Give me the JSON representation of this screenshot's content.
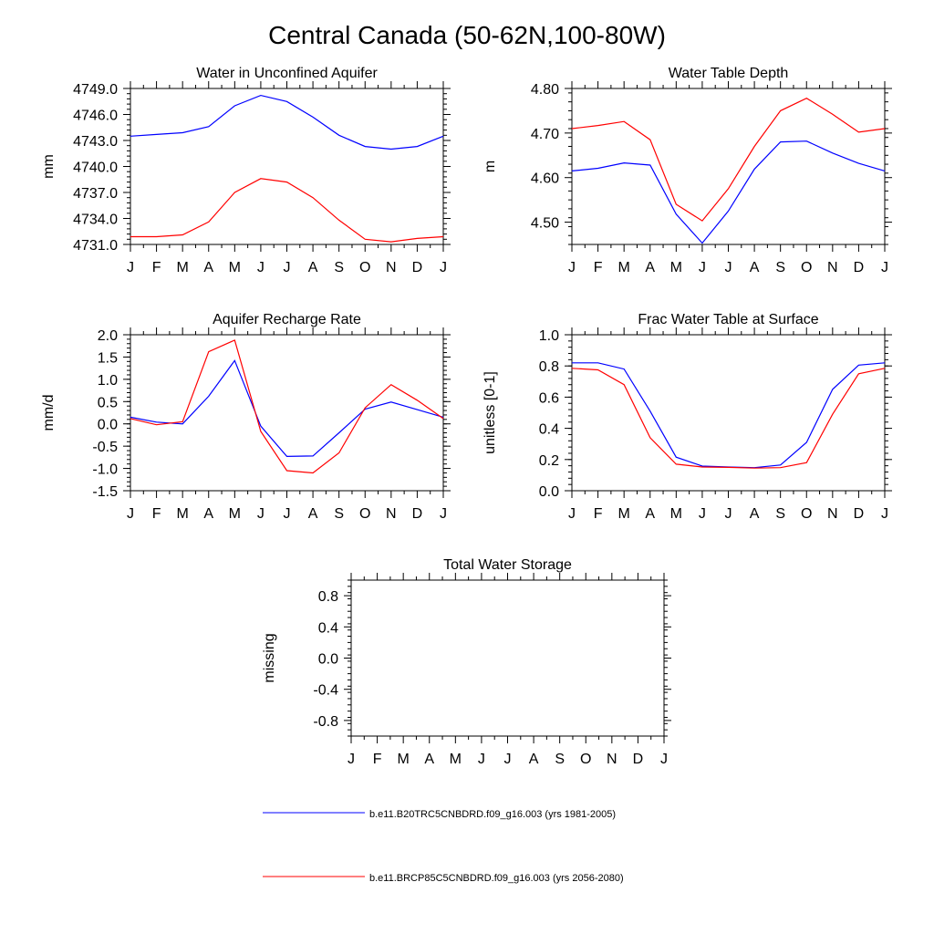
{
  "figure_title": "Central Canada (50-62N,100-80W)",
  "colors": {
    "series_1": "#0000ff",
    "series_2": "#ff0000",
    "axis": "#000000"
  },
  "legend": [
    {
      "label": "b.e11.B20TRC5CNBDRD.f09_g16.003 (yrs 1981-2005)",
      "color": "#0000ff"
    },
    {
      "label": "b.e11.BRCP85C5CNBDRD.f09_g16.003 (yrs 2056-2080)",
      "color": "#ff0000"
    }
  ],
  "chart_data": [
    {
      "type": "line",
      "title": "Water in Unconfined Aquifer",
      "ylabel": "mm",
      "categories": [
        "J",
        "F",
        "M",
        "A",
        "M",
        "J",
        "J",
        "A",
        "S",
        "O",
        "N",
        "D",
        "J"
      ],
      "ylim": [
        4731.0,
        4749.0
      ],
      "yticks": [
        4731.0,
        4734.0,
        4737.0,
        4740.0,
        4743.0,
        4746.0,
        4749.0
      ],
      "ytick_labels": [
        "4731.0",
        "4734.0",
        "4737.0",
        "4740.0",
        "4743.0",
        "4746.0",
        "4749.0"
      ],
      "series": [
        {
          "name": "b.e11.B20TRC5CNBDRD.f09_g16.003 (yrs 1981-2005)",
          "color": "#0000ff",
          "values": [
            4743.5,
            4743.7,
            4743.9,
            4744.6,
            4747.0,
            4748.2,
            4747.5,
            4745.7,
            4743.6,
            4742.3,
            4742.0,
            4742.3,
            4743.5
          ]
        },
        {
          "name": "b.e11.BRCP85C5CNBDRD.f09_g16.003 (yrs 2056-2080)",
          "color": "#ff0000",
          "values": [
            4731.9,
            4731.9,
            4732.1,
            4733.6,
            4737.0,
            4738.6,
            4738.2,
            4736.4,
            4733.8,
            4731.6,
            4731.3,
            4731.7,
            4731.9
          ]
        }
      ]
    },
    {
      "type": "line",
      "title": "Water Table Depth",
      "ylabel": "m",
      "categories": [
        "J",
        "F",
        "M",
        "A",
        "M",
        "J",
        "J",
        "A",
        "S",
        "O",
        "N",
        "D",
        "J"
      ],
      "ylim": [
        4.45,
        4.8
      ],
      "yticks": [
        4.5,
        4.6,
        4.7,
        4.8
      ],
      "ytick_labels": [
        "4.50",
        "4.60",
        "4.70",
        "4.80"
      ],
      "series": [
        {
          "name": "b.e11.B20TRC5CNBDRD.f09_g16.003 (yrs 1981-2005)",
          "color": "#0000ff",
          "values": [
            4.615,
            4.621,
            4.633,
            4.628,
            4.518,
            4.453,
            4.525,
            4.619,
            4.68,
            4.682,
            4.655,
            4.632,
            4.615
          ]
        },
        {
          "name": "b.e11.BRCP85C5CNBDRD.f09_g16.003 (yrs 2056-2080)",
          "color": "#ff0000",
          "values": [
            4.71,
            4.717,
            4.726,
            4.685,
            4.54,
            4.503,
            4.575,
            4.67,
            4.75,
            4.778,
            4.742,
            4.702,
            4.71
          ]
        }
      ]
    },
    {
      "type": "line",
      "title": "Aquifer Recharge Rate",
      "ylabel": "mm/d",
      "categories": [
        "J",
        "F",
        "M",
        "A",
        "M",
        "J",
        "J",
        "A",
        "S",
        "O",
        "N",
        "D",
        "J"
      ],
      "ylim": [
        -1.5,
        2.0
      ],
      "yticks": [
        -1.5,
        -1.0,
        -0.5,
        0.0,
        0.5,
        1.0,
        1.5,
        2.0
      ],
      "ytick_labels": [
        "-1.5",
        "-1.0",
        "-0.5",
        "0.0",
        "0.5",
        "1.0",
        "1.5",
        "2.0"
      ],
      "series": [
        {
          "name": "b.e11.B20TRC5CNBDRD.f09_g16.003 (yrs 1981-2005)",
          "color": "#0000ff",
          "values": [
            0.15,
            0.04,
            0.0,
            0.62,
            1.42,
            -0.05,
            -0.73,
            -0.72,
            -0.2,
            0.33,
            0.49,
            0.32,
            0.15
          ]
        },
        {
          "name": "b.e11.BRCP85C5CNBDRD.f09_g16.003 (yrs 2056-2080)",
          "color": "#ff0000",
          "values": [
            0.12,
            -0.02,
            0.05,
            1.62,
            1.88,
            -0.17,
            -1.05,
            -1.1,
            -0.65,
            0.36,
            0.88,
            0.53,
            0.12
          ]
        }
      ]
    },
    {
      "type": "line",
      "title": "Frac Water Table at Surface",
      "ylabel": "unitless [0-1]",
      "categories": [
        "J",
        "F",
        "M",
        "A",
        "M",
        "J",
        "J",
        "A",
        "S",
        "O",
        "N",
        "D",
        "J"
      ],
      "ylim": [
        0.0,
        1.0
      ],
      "yticks": [
        0.0,
        0.2,
        0.4,
        0.6,
        0.8,
        1.0
      ],
      "ytick_labels": [
        "0.0",
        "0.2",
        "0.4",
        "0.6",
        "0.8",
        "1.0"
      ],
      "series": [
        {
          "name": "b.e11.B20TRC5CNBDRD.f09_g16.003 (yrs 1981-2005)",
          "color": "#0000ff",
          "values": [
            0.82,
            0.82,
            0.78,
            0.51,
            0.215,
            0.158,
            0.152,
            0.148,
            0.165,
            0.31,
            0.65,
            0.805,
            0.82
          ]
        },
        {
          "name": "b.e11.BRCP85C5CNBDRD.f09_g16.003 (yrs 2056-2080)",
          "color": "#ff0000",
          "values": [
            0.785,
            0.775,
            0.68,
            0.34,
            0.17,
            0.152,
            0.15,
            0.145,
            0.148,
            0.18,
            0.49,
            0.75,
            0.785
          ]
        }
      ]
    },
    {
      "type": "line",
      "title": "Total Water Storage",
      "ylabel": "missing",
      "categories": [
        "J",
        "F",
        "M",
        "A",
        "M",
        "J",
        "J",
        "A",
        "S",
        "O",
        "N",
        "D",
        "J"
      ],
      "ylim": [
        -1.0,
        1.0
      ],
      "yticks": [
        -0.8,
        -0.4,
        0.0,
        0.4,
        0.8
      ],
      "ytick_labels": [
        "-0.8",
        "-0.4",
        "0.0",
        "0.4",
        "0.8"
      ],
      "series": []
    }
  ]
}
